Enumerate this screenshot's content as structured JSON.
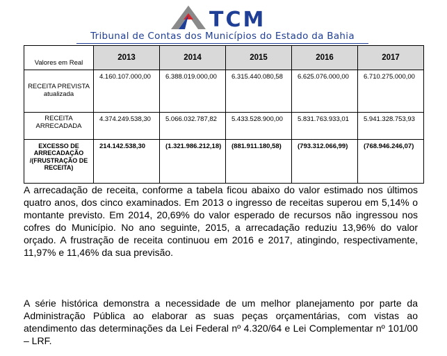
{
  "header": {
    "logo_text": "TCM",
    "subtitle": "Tribunal de Contas dos Municípios do Estado da Bahia",
    "colors": {
      "brand_blue": "#1f3e95",
      "brand_red": "#d7262b",
      "brand_gray": "#8a8a8a"
    }
  },
  "table": {
    "corner_label": "Valores em Real",
    "years": [
      "2013",
      "2014",
      "2015",
      "2016",
      "2017"
    ],
    "rows": [
      {
        "label": "RECEITA PREVISTA atualizada",
        "values": [
          "4.160.107.000,00",
          "6.388.019.000,00",
          "6.315.440.080,58",
          "6.625.076.000,00",
          "6.710.275.000,00"
        ]
      },
      {
        "label": "RECEITA ARRECADADA",
        "values": [
          "4.374.249.538,30",
          "5.066.032.787,82",
          "5.433.528.900,00",
          "5.831.763.933,01",
          "5.941.328.753,93"
        ]
      },
      {
        "label": "EXCESSO DE ARRECADAÇÃO /(FRUSTRAÇÃO DE RECEITA)",
        "values": [
          "214.142.538,30",
          "(1.321.986.212,18)",
          "(881.911.180,58)",
          "(793.312.066,99)",
          "(768.946.246,07)"
        ]
      }
    ]
  },
  "paragraphs": [
    "A arrecadação de receita, conforme a tabela ficou abaixo do valor estimado nos últimos quatro anos, dos cinco examinados. Em 2013 o ingresso de receitas superou em 5,14% o montante previsto. Em 2014, 20,69% do valor esperado de recursos não ingressou nos cofres do Município. No ano seguinte, 2015, a arrecadação reduziu 13,96% do valor orçado. A frustração de receita continuou em 2016 e 2017, atingindo, respectivamente, 11,97% e 11,46% da sua previsão.",
    "A série histórica demonstra a necessidade de um melhor planejamento por parte da Administração Pública ao elaborar as suas peças orçamentárias, com vistas ao atendimento das determinações da Lei Federal nº 4.320/64 e Lei Complementar nº 101/00 – LRF."
  ]
}
